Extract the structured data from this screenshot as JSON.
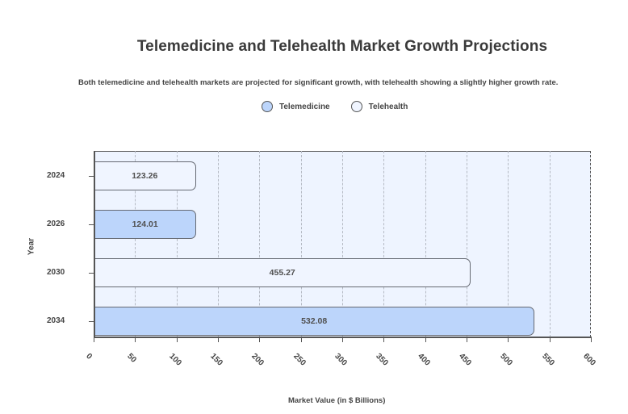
{
  "chart_data": {
    "type": "bar",
    "orientation": "horizontal",
    "title": "Telemedicine and Telehealth Market Growth Projections",
    "subtitle": "Both telemedicine and telehealth markets are projected for significant growth, with telehealth showing a slightly higher growth rate.",
    "xlabel": "Market Value (in $ Billions)",
    "ylabel": "Year",
    "xlim": [
      0,
      600
    ],
    "x_ticks": [
      "0",
      "50",
      "100",
      "150",
      "200",
      "250",
      "300",
      "350",
      "400",
      "450",
      "500",
      "550",
      "600"
    ],
    "categories": [
      "2024",
      "2026",
      "2030",
      "2034"
    ],
    "values": [
      123.26,
      124.01,
      455.27,
      532.08
    ],
    "value_labels": [
      "123.26",
      "124.01",
      "455.27",
      "532.08"
    ],
    "bar_series": [
      "Telehealth",
      "Telemedicine",
      "Telehealth",
      "Telemedicine"
    ],
    "series": [
      {
        "name": "Telemedicine",
        "color": "#bcd5fb",
        "points": [
          {
            "year": "2026",
            "value": 124.01
          },
          {
            "year": "2034",
            "value": 532.08
          }
        ]
      },
      {
        "name": "Telehealth",
        "color": "#f0f5ff",
        "points": [
          {
            "year": "2024",
            "value": 123.26
          },
          {
            "year": "2030",
            "value": 455.27
          }
        ]
      }
    ],
    "legend": [
      {
        "label": "Telemedicine",
        "color": "#bcd5fb"
      },
      {
        "label": "Telehealth",
        "color": "#f0f5ff"
      }
    ],
    "legend_position": "top",
    "grid": {
      "x": true,
      "y": false,
      "style": "dashed"
    },
    "plot_background": "#eef4ff"
  }
}
